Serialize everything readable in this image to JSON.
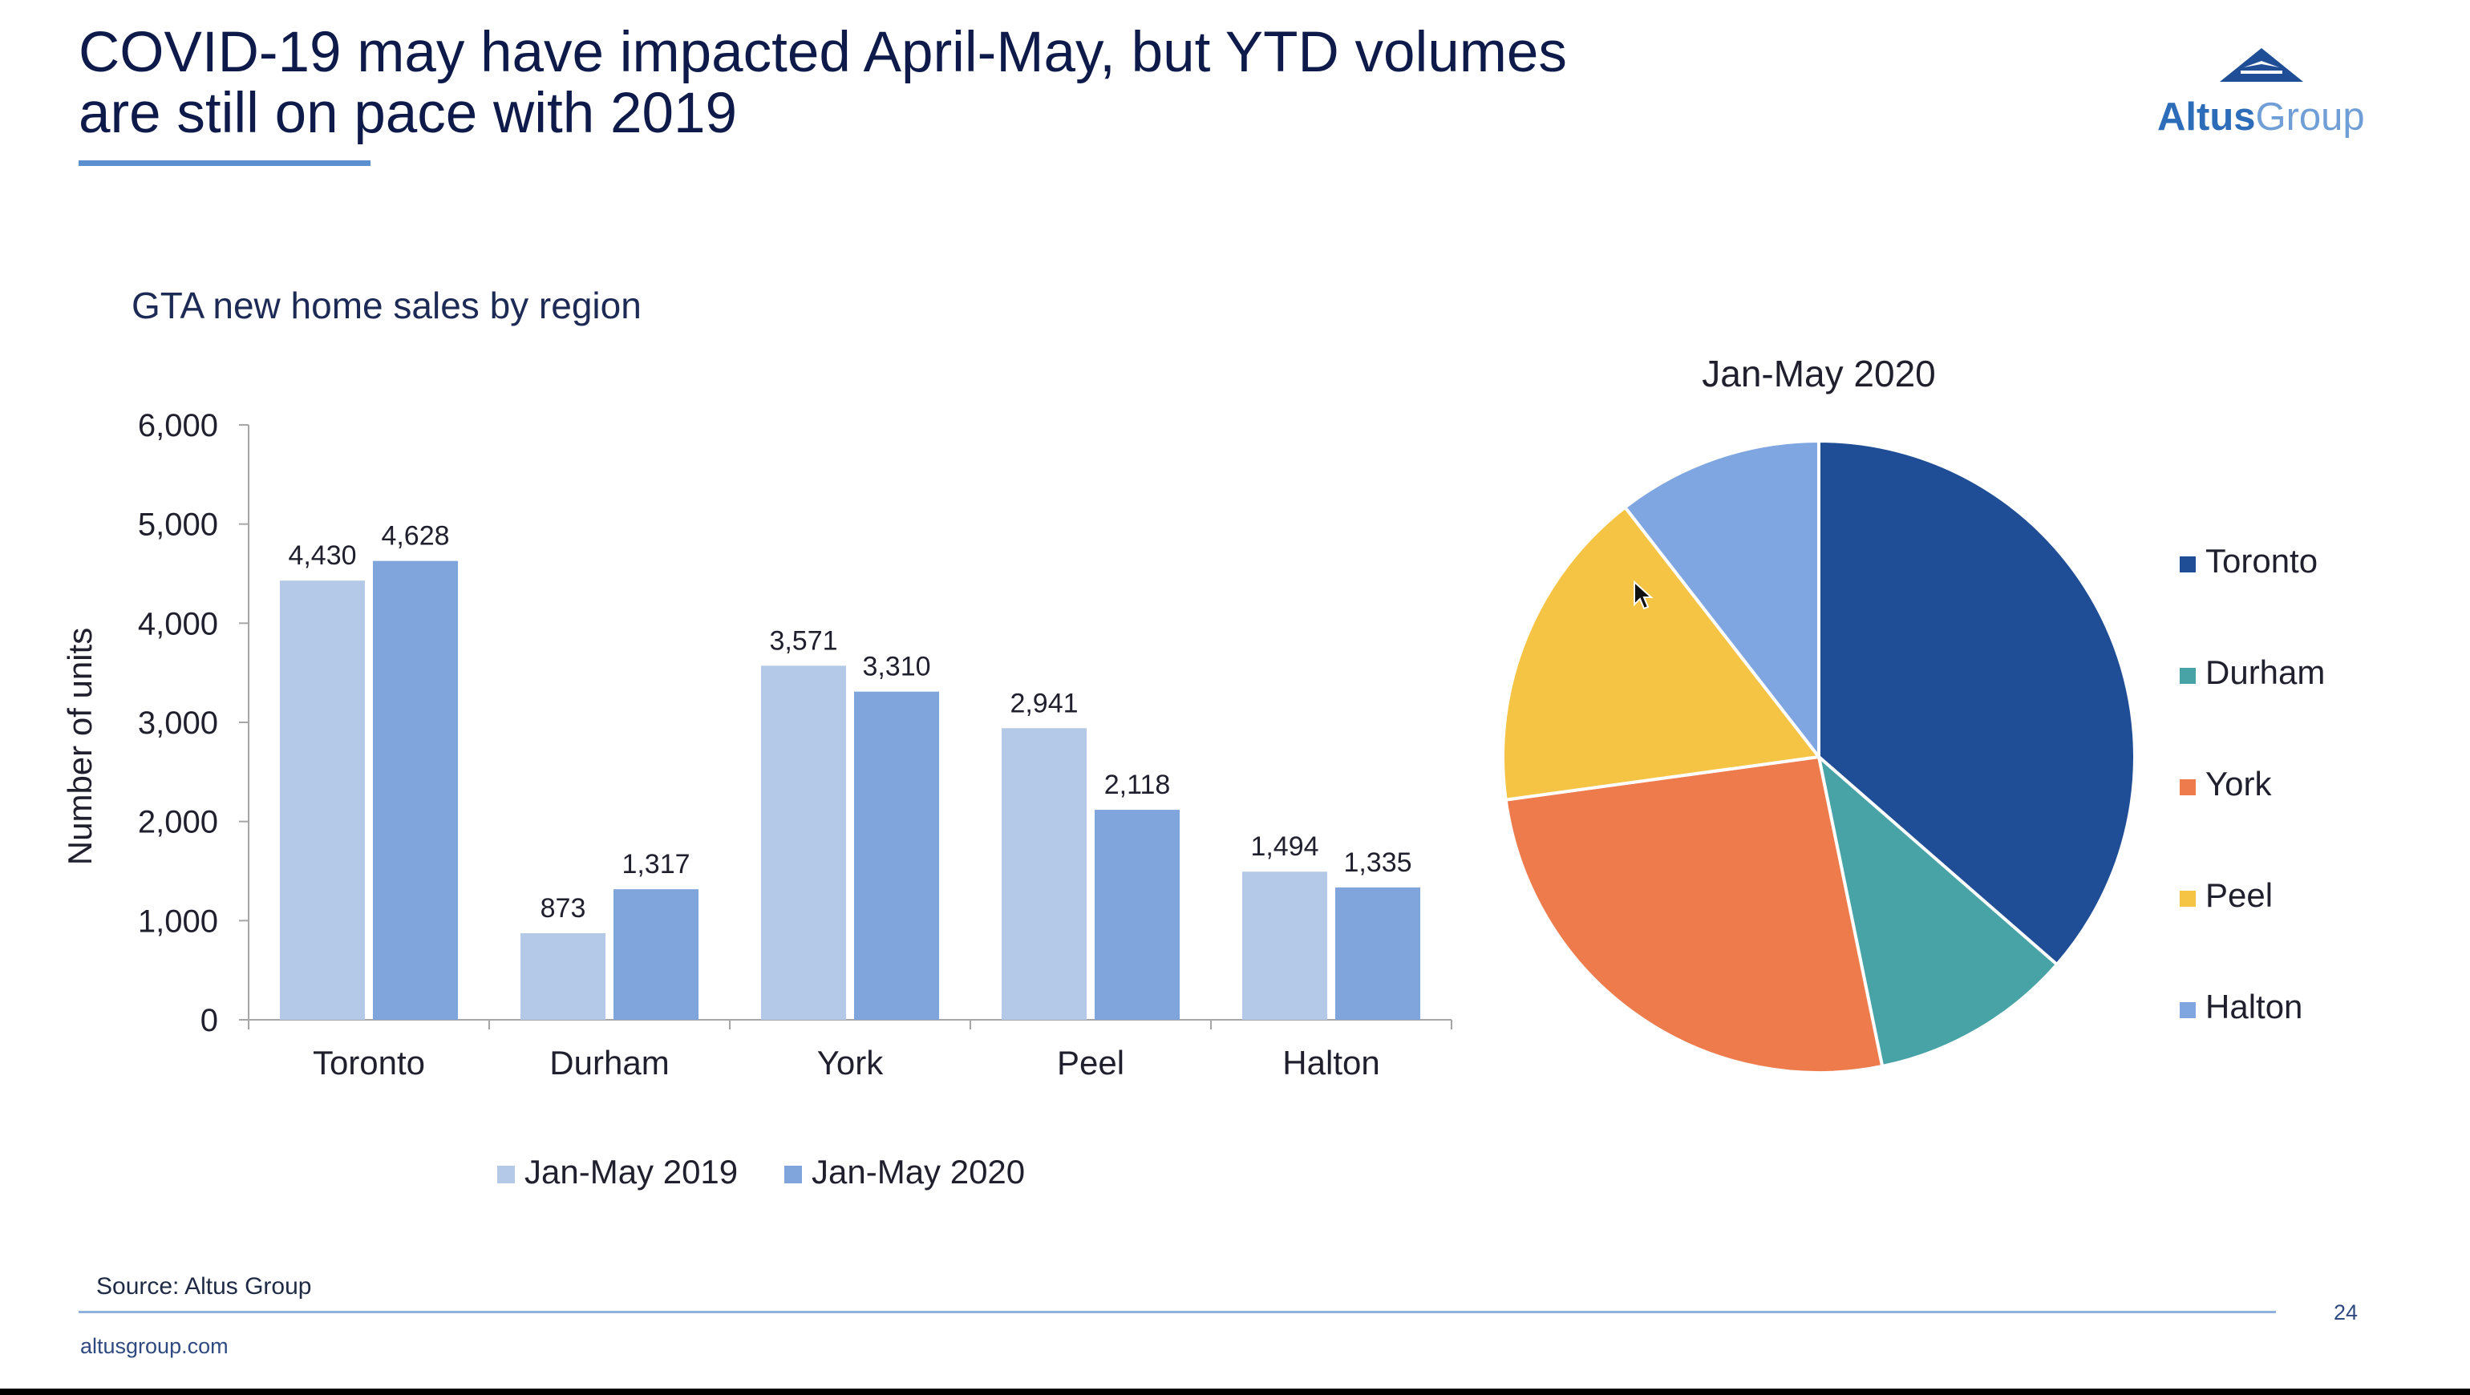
{
  "title": {
    "line1": "COVID-19 may have impacted April-May, but YTD volumes",
    "line2": "are still on pace with 2019"
  },
  "logo": {
    "brand_part1": "Altus",
    "brand_part2": "Group",
    "icon": "altus-triangle-logo"
  },
  "subtitle": "GTA new home sales by region",
  "colors": {
    "bar_2019": "#b4c9e7",
    "bar_2020": "#7fa5dc",
    "toronto": "#1f4e96",
    "durham": "#47a3a6",
    "york": "#ee7b4c",
    "peel": "#f6c445",
    "halton": "#7fa6e1"
  },
  "chart_data": [
    {
      "type": "bar",
      "title": "",
      "xlabel": "",
      "ylabel": "Number of units",
      "ylim": [
        0,
        6000
      ],
      "yticks": [
        "0",
        "1,000",
        "2,000",
        "3,000",
        "4,000",
        "5,000",
        "6,000"
      ],
      "categories": [
        "Toronto",
        "Durham",
        "York",
        "Peel",
        "Halton"
      ],
      "series": [
        {
          "name": "Jan-May 2019",
          "values": [
            4430,
            873,
            3571,
            2941,
            1494
          ],
          "labels": [
            "4,430",
            "873",
            "3,571",
            "2,941",
            "1,494"
          ]
        },
        {
          "name": "Jan-May 2020",
          "values": [
            4628,
            1317,
            3310,
            2118,
            1335
          ],
          "labels": [
            "4,628",
            "1,317",
            "3,310",
            "2,118",
            "1,335"
          ]
        }
      ],
      "grid": false,
      "legend": "bottom"
    },
    {
      "type": "pie",
      "title": "Jan-May 2020",
      "labels": [
        "Toronto",
        "Durham",
        "York",
        "Peel",
        "Halton"
      ],
      "values": [
        4628,
        1317,
        3310,
        2118,
        1335
      ],
      "legend": "right"
    }
  ],
  "source": "Source: Altus Group",
  "website": "altusgroup.com",
  "page_number": "24"
}
